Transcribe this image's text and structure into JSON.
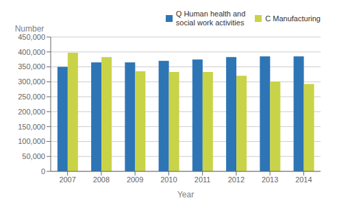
{
  "chart_data": {
    "type": "bar",
    "xlabel": "Year",
    "ylabel": "Number",
    "categories": [
      "2007",
      "2008",
      "2009",
      "2010",
      "2011",
      "2012",
      "2013",
      "2014"
    ],
    "series": [
      {
        "name": "Q Human health and\nsocial work activities",
        "color": "#2e75b6",
        "values": [
          350000,
          365000,
          365000,
          370000,
          375000,
          383000,
          385000,
          385000
        ]
      },
      {
        "name": "C Manufacturing",
        "color": "#c9d347",
        "values": [
          397000,
          383000,
          335000,
          333000,
          333000,
          320000,
          301000,
          293000
        ]
      }
    ],
    "ylim": [
      0,
      450000
    ],
    "yticks": [
      0,
      {
        "value": 50000,
        "label": "50,000"
      },
      {
        "value": 100000,
        "label": "100,000"
      },
      {
        "value": 150000,
        "label": "150,000"
      },
      {
        "value": 200000,
        "label": "200,000"
      },
      {
        "value": 250000,
        "label": "250,000"
      },
      {
        "value": 300000,
        "label": "300,000"
      },
      {
        "value": 350000,
        "label": "350,000"
      },
      {
        "value": 400000,
        "label": "400,000"
      },
      {
        "value": 450000,
        "label": "450,000"
      }
    ],
    "grid": true,
    "legend": "upper right"
  }
}
